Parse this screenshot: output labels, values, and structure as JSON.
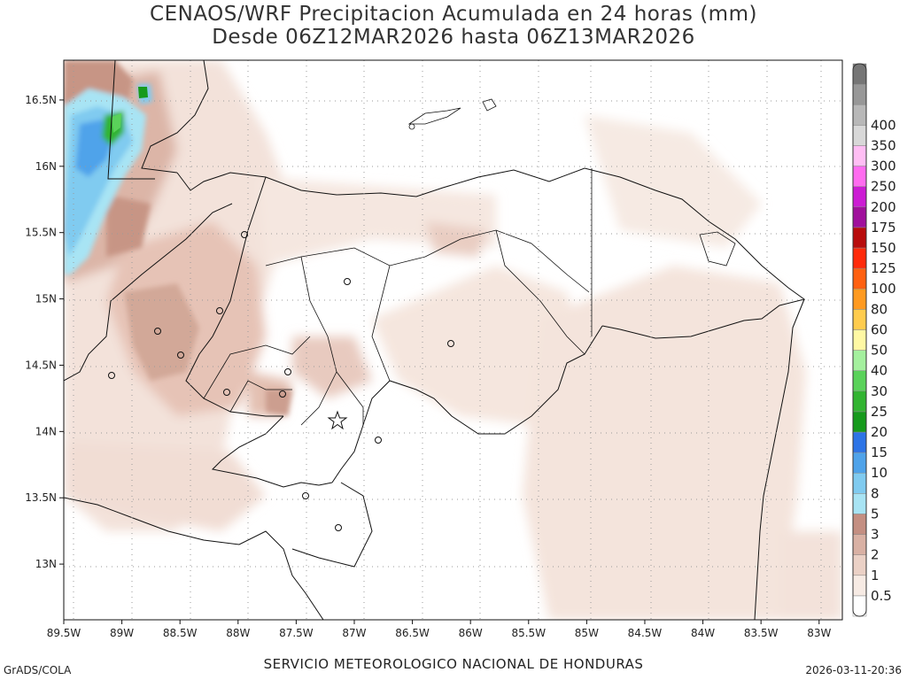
{
  "title": {
    "line1": "CENAOS/WRF Precipitacion Acumulada en 24 horas (mm)",
    "line2": "Desde 06Z12MAR2026 hasta 06Z13MAR2026"
  },
  "map": {
    "lon_range": [
      -89.5,
      -82.8
    ],
    "lat_range": [
      12.58,
      16.8
    ],
    "lon_ticks": [
      "89.5W",
      "89W",
      "88.5W",
      "88W",
      "87.5W",
      "87W",
      "86.5W",
      "86W",
      "85.5W",
      "85W",
      "84.5W",
      "84W",
      "83.5W",
      "83W"
    ],
    "lat_ticks": [
      "16.5N",
      "16N",
      "15.5N",
      "15N",
      "14.5N",
      "14N",
      "13.5N",
      "13N"
    ]
  },
  "colorbar": {
    "labels": [
      "0.5",
      "1",
      "2",
      "3",
      "5",
      "8",
      "10",
      "15",
      "20",
      "25",
      "30",
      "40",
      "50",
      "60",
      "80",
      "100",
      "125",
      "150",
      "175",
      "200",
      "250",
      "300",
      "350",
      "400"
    ],
    "colors": [
      "#ffffff",
      "#f7ebe4",
      "#ebd1c6",
      "#d9b1a4",
      "#c48f82",
      "#a8e4f4",
      "#80cbf0",
      "#4fa3ea",
      "#2d74e6",
      "#169a1c",
      "#32b431",
      "#5ad25a",
      "#a4f09e",
      "#fff8a4",
      "#ffcc4e",
      "#ff9a20",
      "#ff6010",
      "#ff2a0a",
      "#b80c0c",
      "#a0109c",
      "#cc1cd4",
      "#ff6cf0",
      "#ffbef4",
      "#d8d8d8",
      "#b8b8b8",
      "#989898",
      "#767676"
    ]
  },
  "footer": {
    "credit": "GrADS/COLA",
    "service": "SERVICIO METEOROLOGICO NACIONAL DE HONDURAS",
    "timestamp": "2026-03-11-20:36"
  }
}
